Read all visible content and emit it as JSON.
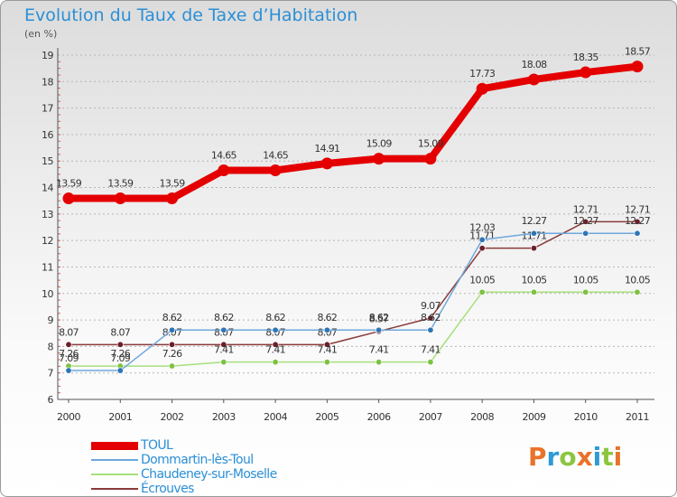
{
  "header": {
    "title": "Evolution du Taux de Taxe d’Habitation",
    "subtitle": "(en %)"
  },
  "logo": {
    "text": "Proxiti",
    "letters": [
      "P",
      "r",
      "o",
      "x",
      "i",
      "t",
      "i"
    ],
    "colors": [
      "#e8732a",
      "#2e9bd6",
      "#8cc63f",
      "#e8732a",
      "#2e9bd6",
      "#8cc63f",
      "#e8732a"
    ]
  },
  "chart_data": {
    "type": "line",
    "title": "Evolution du Taux de Taxe d’Habitation",
    "subtitle": "(en %)",
    "xlabel": "",
    "ylabel": "",
    "x": [
      "2000",
      "2001",
      "2002",
      "2003",
      "2004",
      "2005",
      "2006",
      "2007",
      "2008",
      "2009",
      "2010",
      "2011"
    ],
    "ylim": [
      6,
      19
    ],
    "yticks": [
      6,
      7,
      8,
      9,
      10,
      11,
      12,
      13,
      14,
      15,
      16,
      17,
      18,
      19
    ],
    "grid": "horizontal dashed",
    "legend_position": "bottom-left",
    "series": [
      {
        "name": "TOUL",
        "color": "#e40000",
        "marker_color": "#e40000",
        "width": 8,
        "values": [
          13.59,
          13.59,
          13.59,
          14.65,
          14.65,
          14.91,
          15.09,
          15.09,
          17.73,
          18.08,
          18.35,
          18.57
        ],
        "labels": [
          "13.59",
          "13.59",
          "13.59",
          "14.65",
          "14.65",
          "14.91",
          "15.09",
          "15.09",
          "17.73",
          "18.08",
          "18.35",
          "18.57"
        ]
      },
      {
        "name": "Dommartin-lès-Toul",
        "color": "#6fa8dc",
        "marker_color": "#2e75b6",
        "width": 1.5,
        "values": [
          7.09,
          7.09,
          8.62,
          8.62,
          8.62,
          8.62,
          8.62,
          8.62,
          12.03,
          12.27,
          12.27,
          12.27
        ],
        "labels": [
          "7.09",
          "7.09",
          "8.62",
          "8.62",
          "8.62",
          "8.62",
          "8.62",
          "8.62",
          "12.03",
          "12.27",
          "12.27",
          "12.27"
        ]
      },
      {
        "name": "Chaudeney-sur-Moselle",
        "color": "#a6e07a",
        "marker_color": "#7cc242",
        "width": 1.5,
        "values": [
          7.26,
          7.26,
          7.26,
          7.41,
          7.41,
          7.41,
          7.41,
          7.41,
          10.05,
          10.05,
          10.05,
          10.05
        ],
        "labels": [
          "7.26",
          "7.26",
          "7.26",
          "7.41",
          "7.41",
          "7.41",
          "7.41",
          "7.41",
          "10.05",
          "10.05",
          "10.05",
          "10.05"
        ]
      },
      {
        "name": "Écrouves",
        "color": "#8b3a3a",
        "marker_color": "#6b1f2a",
        "width": 1.5,
        "values": [
          8.07,
          8.07,
          8.07,
          8.07,
          8.07,
          8.07,
          8.57,
          9.07,
          11.71,
          11.71,
          12.71,
          12.71
        ],
        "labels": [
          "8.07",
          "8.07",
          "8.07",
          "8.07",
          "8.07",
          "8.07",
          "8.57",
          "9.07",
          "11.71",
          "11.71",
          "12.71",
          "12.71"
        ]
      }
    ]
  }
}
